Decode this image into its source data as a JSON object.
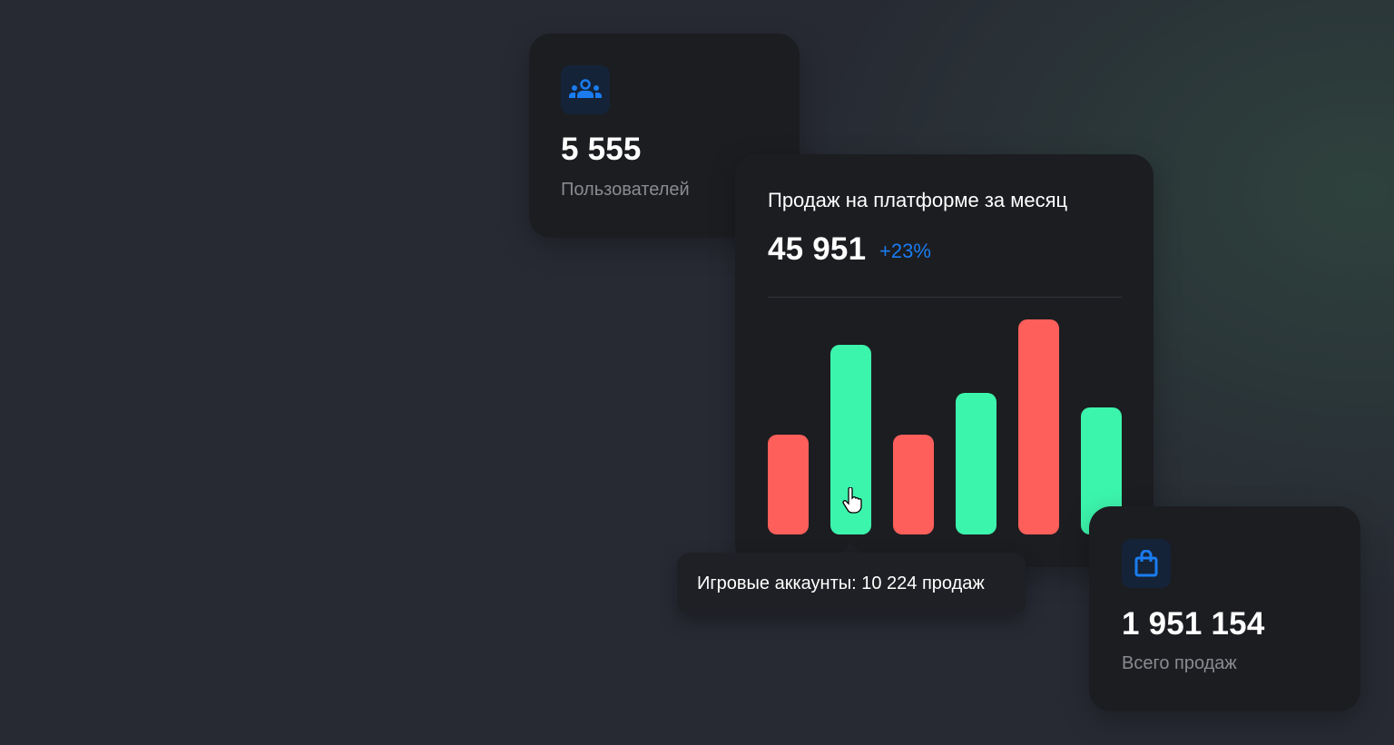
{
  "users_card": {
    "icon": "users-icon",
    "value": "5 555",
    "label": "Пользователей"
  },
  "sales_card": {
    "title": "Продаж на платформе за месяц",
    "value": "45 951",
    "change": "+23%"
  },
  "total_card": {
    "icon": "shopping-bag-icon",
    "value": "1 951 154",
    "label": "Всего продаж"
  },
  "tooltip": {
    "text": "Игровые аккаунты: 10 224 продаж"
  },
  "colors": {
    "background": "#272a33",
    "card": "#1c1d21",
    "accent": "#1a7cf0",
    "up": "#3cf5ac",
    "down": "#fe5f5b"
  },
  "chart_data": {
    "type": "bar",
    "title": "Продаж на платформе за месяц",
    "categories": [
      "",
      "Игровые аккаунты",
      "",
      "",
      "",
      ""
    ],
    "values": [
      5380,
      10224,
      5380,
      7630,
      11590,
      6850
    ],
    "bar_colors": [
      "#fe5f5b",
      "#3cf5ac",
      "#fe5f5b",
      "#3cf5ac",
      "#fe5f5b",
      "#3cf5ac"
    ],
    "grid": false,
    "hovered_index": 1
  }
}
